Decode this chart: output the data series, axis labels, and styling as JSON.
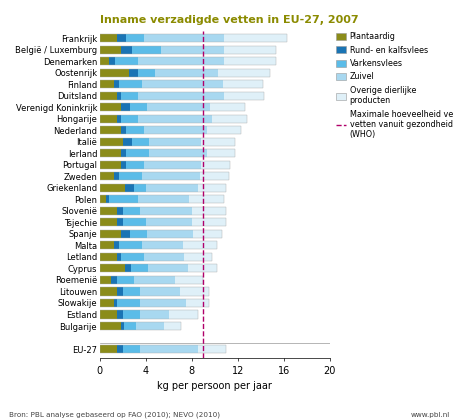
{
  "title": "Inname verzadigde vetten in EU-27, 2007",
  "xlabel": "kg per persoon per jaar",
  "who_line": 9.0,
  "colors": {
    "plantaardig": "#8B8C1A",
    "rund": "#1A74B4",
    "varkensvlees": "#5BBCE8",
    "zuivel": "#A8D8F0",
    "overige": "#DFF0F8"
  },
  "legend_labels": [
    "Plantaardig",
    "Rund- en kalfsvlees",
    "Varkensvlees",
    "Zuivel",
    "Overige dierlijke\nproducten"
  ],
  "source": "Bron: PBL analyse gebaseerd op FAO (2010); NEVO (2010)",
  "website": "www.pbl.nl",
  "countries": [
    "Frankrijk",
    "België / Luxemburg",
    "Denemarken",
    "Oostenrijk",
    "Finland",
    "Duitsland",
    "Verenigd Koninkrijk",
    "Hongarije",
    "Nederland",
    "Italië",
    "Ierland",
    "Portugal",
    "Zweden",
    "Griekenland",
    "Polen",
    "Slovenië",
    "Tsjechie",
    "Spanje",
    "Malta",
    "Letland",
    "Cyprus",
    "Roemenië",
    "Litouwen",
    "Slowakije",
    "Estland",
    "Bulgarije",
    "EU-27"
  ],
  "data": {
    "plantaardig": [
      1.5,
      1.8,
      0.8,
      2.5,
      1.2,
      1.5,
      1.8,
      1.5,
      1.8,
      2.0,
      1.8,
      1.8,
      1.2,
      2.2,
      0.5,
      1.5,
      1.5,
      1.8,
      1.2,
      1.5,
      2.2,
      1.0,
      1.5,
      1.2,
      1.5,
      1.8,
      1.5
    ],
    "rund": [
      0.8,
      1.0,
      0.5,
      0.8,
      0.5,
      0.3,
      0.8,
      0.3,
      0.5,
      0.8,
      0.5,
      0.5,
      0.5,
      0.8,
      0.3,
      0.5,
      0.5,
      0.8,
      0.5,
      0.3,
      0.5,
      0.5,
      0.5,
      0.3,
      0.5,
      0.3,
      0.5
    ],
    "varkensvlees": [
      1.5,
      2.5,
      2.0,
      1.5,
      2.0,
      1.5,
      1.5,
      1.5,
      1.5,
      1.5,
      2.0,
      1.5,
      2.0,
      1.0,
      2.5,
      1.5,
      2.0,
      1.5,
      2.0,
      2.0,
      1.5,
      1.5,
      1.5,
      2.0,
      1.5,
      1.0,
      1.5
    ],
    "zuivel": [
      7.0,
      5.5,
      7.5,
      5.5,
      7.0,
      7.5,
      5.5,
      6.5,
      5.5,
      4.5,
      5.0,
      5.0,
      5.0,
      4.5,
      4.5,
      4.5,
      4.0,
      4.0,
      3.5,
      3.5,
      3.5,
      3.5,
      3.5,
      4.0,
      2.5,
      2.5,
      5.0
    ],
    "overige": [
      5.5,
      4.5,
      4.5,
      4.5,
      3.5,
      3.5,
      3.0,
      3.0,
      3.0,
      3.0,
      2.5,
      2.5,
      2.5,
      2.5,
      3.0,
      3.0,
      3.0,
      2.5,
      3.0,
      2.5,
      2.5,
      2.5,
      2.5,
      2.0,
      2.5,
      1.5,
      2.5
    ]
  },
  "xlim": [
    0,
    20
  ],
  "xticks": [
    0,
    4,
    8,
    12,
    16,
    20
  ],
  "title_color": "#8B8B00",
  "background_color": "#FFFFFF",
  "bar_height": 0.7
}
